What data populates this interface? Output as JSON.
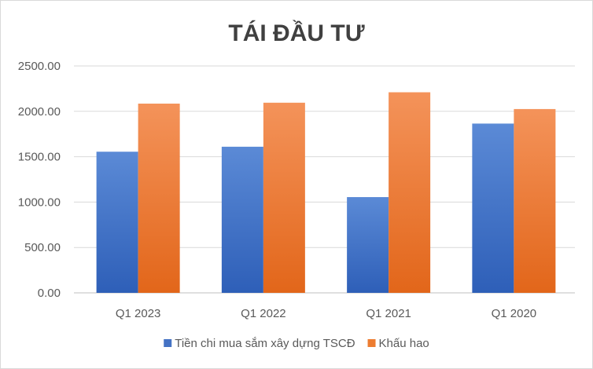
{
  "chart_data": {
    "type": "bar",
    "title": "TÁI ĐẦU TƯ",
    "categories": [
      "Q1 2023",
      "Q1 2022",
      "Q1 2021",
      "Q1 2020"
    ],
    "y_ticks": [
      "0.00",
      "500.00",
      "1000.00",
      "1500.00",
      "2000.00",
      "2500.00"
    ],
    "ylim": [
      0,
      2500
    ],
    "grid": "on",
    "legend_position": "bottom",
    "series": [
      {
        "name": "Tiền chi mua sắm xây dựng TSCĐ",
        "color": "#4472C4",
        "values": [
          1555,
          1610,
          1055,
          1865
        ]
      },
      {
        "name": "Khấu hao",
        "color": "#ED7D31",
        "values": [
          2085,
          2095,
          2210,
          2025
        ]
      }
    ]
  }
}
